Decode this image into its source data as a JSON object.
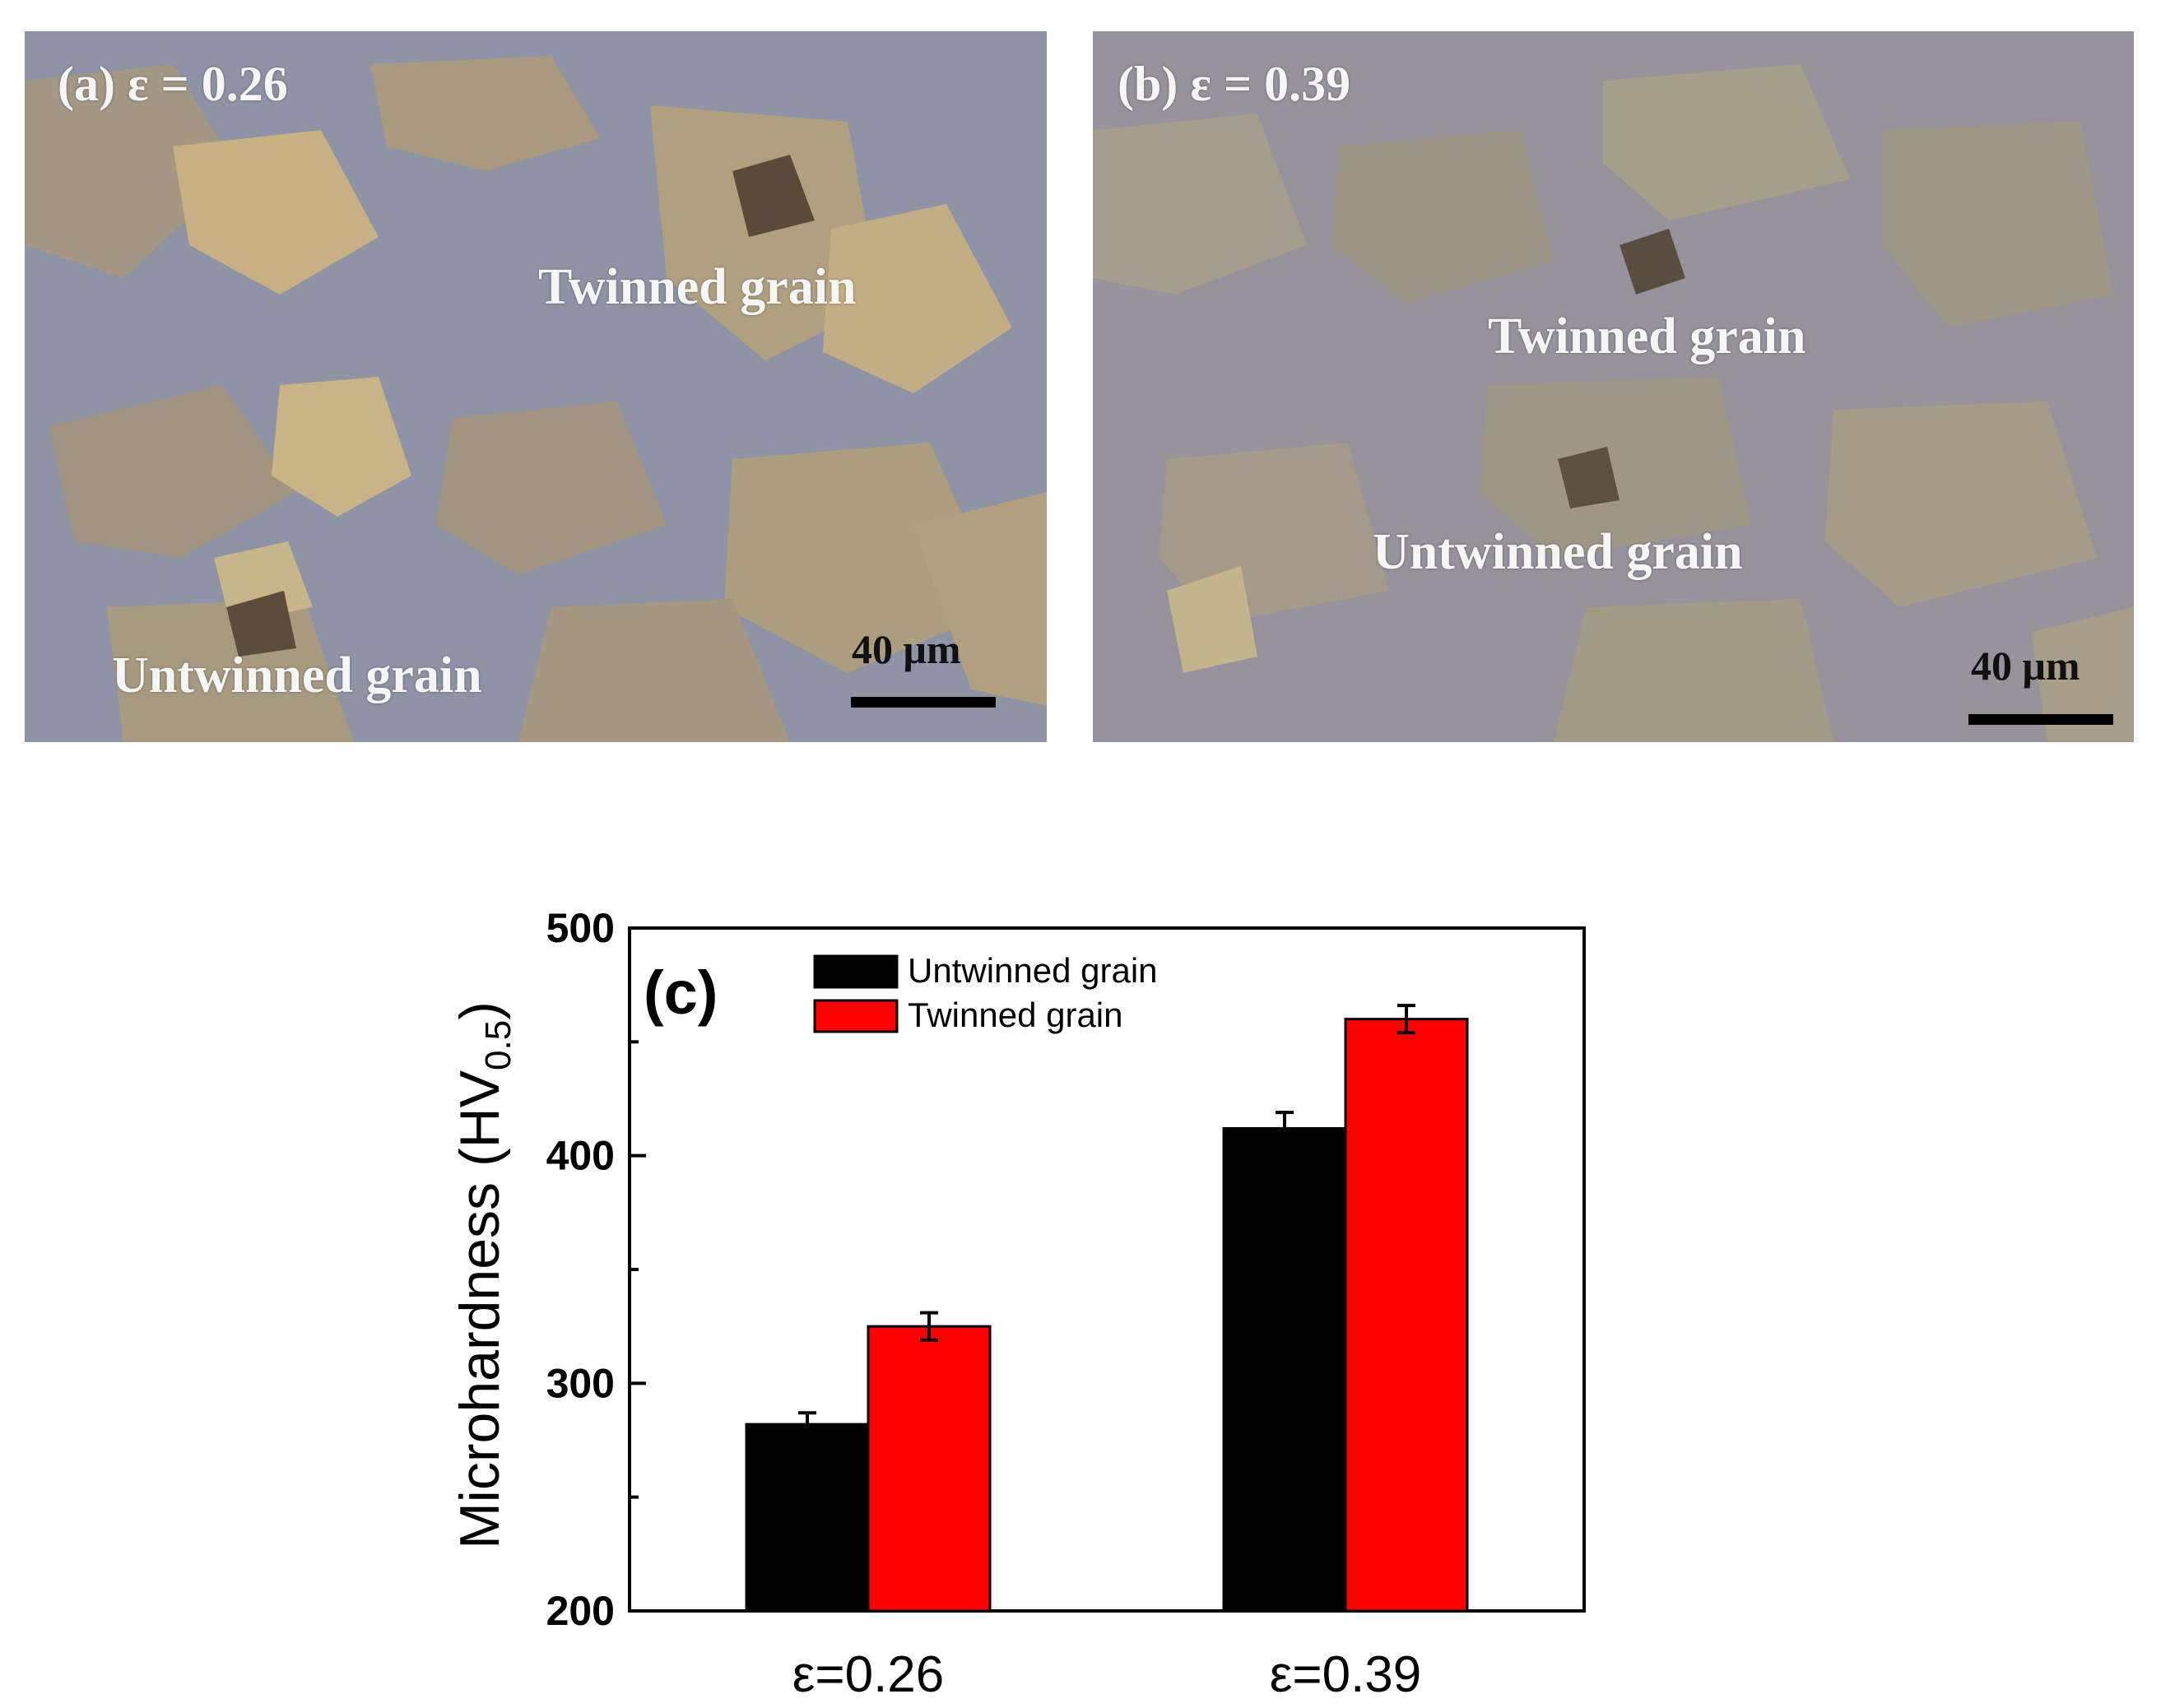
{
  "panels": [
    {
      "label": "(a) ε = 0.26",
      "twinned_label": "Twinned grain",
      "untwinned_label": "Untwinned grain",
      "scale_label": "40 μm"
    },
    {
      "label": "(b) ε = 0.39",
      "twinned_label": "Twinned grain",
      "untwinned_label": "Untwinned grain",
      "scale_label": "40 μm"
    }
  ],
  "colors": {
    "untwinned": "#000000",
    "twinned": "#ff0000"
  },
  "chart_data": {
    "type": "bar",
    "panel_label": "(c)",
    "categories": [
      "ε=0.26",
      "ε=0.39"
    ],
    "series": [
      {
        "name": "Untwinned grain",
        "values": [
          282,
          412
        ],
        "errors": [
          5,
          7
        ]
      },
      {
        "name": "Twinned grain",
        "values": [
          325,
          460
        ],
        "errors": [
          6,
          6
        ]
      }
    ],
    "ylabel": "Microhardness (HV",
    "ylabel_sub": "0.5",
    "ylabel_close": ")",
    "xlabel": "",
    "ylim": [
      200,
      500
    ],
    "yticks": [
      "200",
      "300",
      "400",
      "500"
    ],
    "legend": "top-left"
  }
}
